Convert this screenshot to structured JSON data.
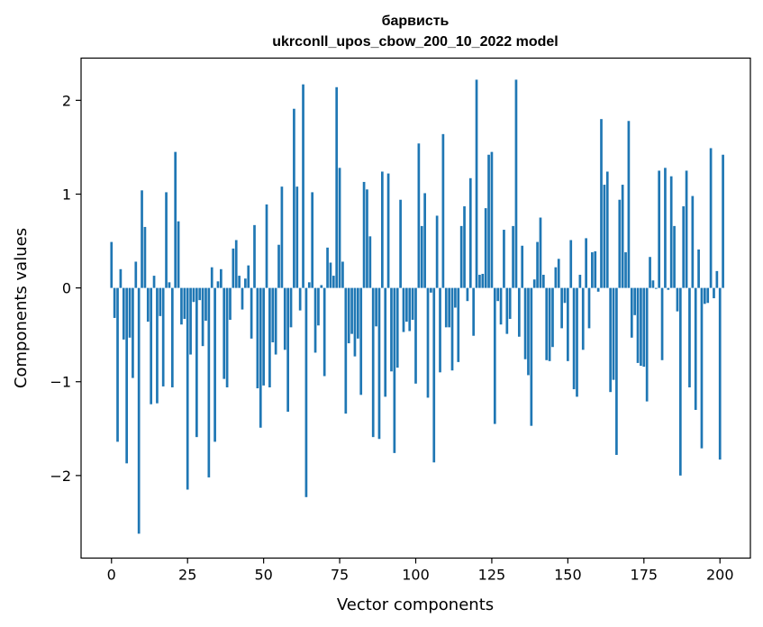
{
  "chart_data": {
    "type": "bar",
    "title": [
      "барвисть",
      "ukrconll_upos_cbow_200_10_2022 model"
    ],
    "xlabel": "Vector components",
    "ylabel": "Components values",
    "xlim": [
      -10,
      210
    ],
    "ylim": [
      -2.88,
      2.45
    ],
    "xticks": [
      0,
      25,
      50,
      75,
      100,
      125,
      150,
      175,
      200
    ],
    "xtick_labels": [
      "0",
      "25",
      "50",
      "75",
      "100",
      "125",
      "150",
      "175",
      "200"
    ],
    "yticks": [
      -2,
      -1,
      0,
      1,
      2
    ],
    "ytick_labels": [
      "−2",
      "−1",
      "0",
      "1",
      "2"
    ],
    "bar_color": "#1f77b4",
    "grid": false,
    "values": [
      0.49,
      -0.32,
      -1.64,
      0.2,
      -0.55,
      -1.87,
      -0.53,
      -0.96,
      0.28,
      -2.62,
      1.04,
      0.65,
      -0.36,
      -1.24,
      0.13,
      -1.23,
      -0.3,
      -1.05,
      1.02,
      0.06,
      -1.06,
      1.45,
      0.71,
      -0.39,
      -0.33,
      -2.15,
      -0.71,
      -0.15,
      -1.59,
      -0.13,
      -0.62,
      -0.35,
      -2.02,
      0.22,
      -1.64,
      0.07,
      0.2,
      -0.97,
      -1.06,
      -0.34,
      0.42,
      0.51,
      0.13,
      -0.23,
      0.1,
      0.24,
      -0.54,
      0.67,
      -1.07,
      -1.49,
      -1.04,
      0.89,
      -1.06,
      -0.58,
      -0.71,
      0.46,
      1.08,
      -0.66,
      -1.32,
      -0.42,
      1.91,
      1.08,
      -0.24,
      2.17,
      -2.23,
      0.06,
      1.02,
      -0.69,
      -0.4,
      0.03,
      -0.94,
      0.43,
      0.27,
      0.13,
      2.14,
      1.28,
      0.28,
      -1.34,
      -0.59,
      -0.49,
      -0.73,
      -0.54,
      -1.14,
      1.13,
      1.05,
      0.55,
      -1.59,
      -0.41,
      -1.61,
      1.24,
      -1.16,
      1.22,
      -0.89,
      -1.76,
      -0.85,
      0.94,
      -0.47,
      -0.36,
      -0.46,
      -0.34,
      -1.02,
      1.54,
      0.66,
      1.01,
      -1.17,
      -0.05,
      -1.86,
      0.77,
      -0.9,
      1.64,
      -0.42,
      -0.42,
      -0.88,
      -0.21,
      -0.79,
      0.66,
      0.87,
      -0.14,
      1.17,
      -0.51,
      2.22,
      0.14,
      0.15,
      0.85,
      1.42,
      1.45,
      -1.45,
      -0.14,
      -0.39,
      0.62,
      -0.49,
      -0.33,
      0.66,
      2.22,
      -0.52,
      0.45,
      -0.76,
      -0.93,
      -1.47,
      0.09,
      0.49,
      0.75,
      0.14,
      -0.77,
      -0.78,
      -0.63,
      0.22,
      0.31,
      -0.43,
      -0.16,
      -0.78,
      0.51,
      -1.08,
      -1.16,
      0.14,
      -0.66,
      0.53,
      -0.43,
      0.38,
      0.39,
      -0.04,
      1.8,
      1.1,
      1.24,
      -1.11,
      -0.98,
      -1.78,
      0.94,
      1.1,
      0.38,
      1.78,
      -0.53,
      -0.29,
      -0.8,
      -0.83,
      -0.84,
      -1.21,
      0.33,
      0.08,
      -0.01,
      1.25,
      -0.77,
      1.28,
      -0.02,
      1.19,
      0.66,
      -0.25,
      -2.0,
      0.87,
      1.25,
      -1.06,
      0.98,
      -1.3,
      0.41,
      -1.71,
      -0.17,
      -0.16,
      1.49,
      -0.11,
      0.18,
      -1.83,
      1.42
    ]
  }
}
